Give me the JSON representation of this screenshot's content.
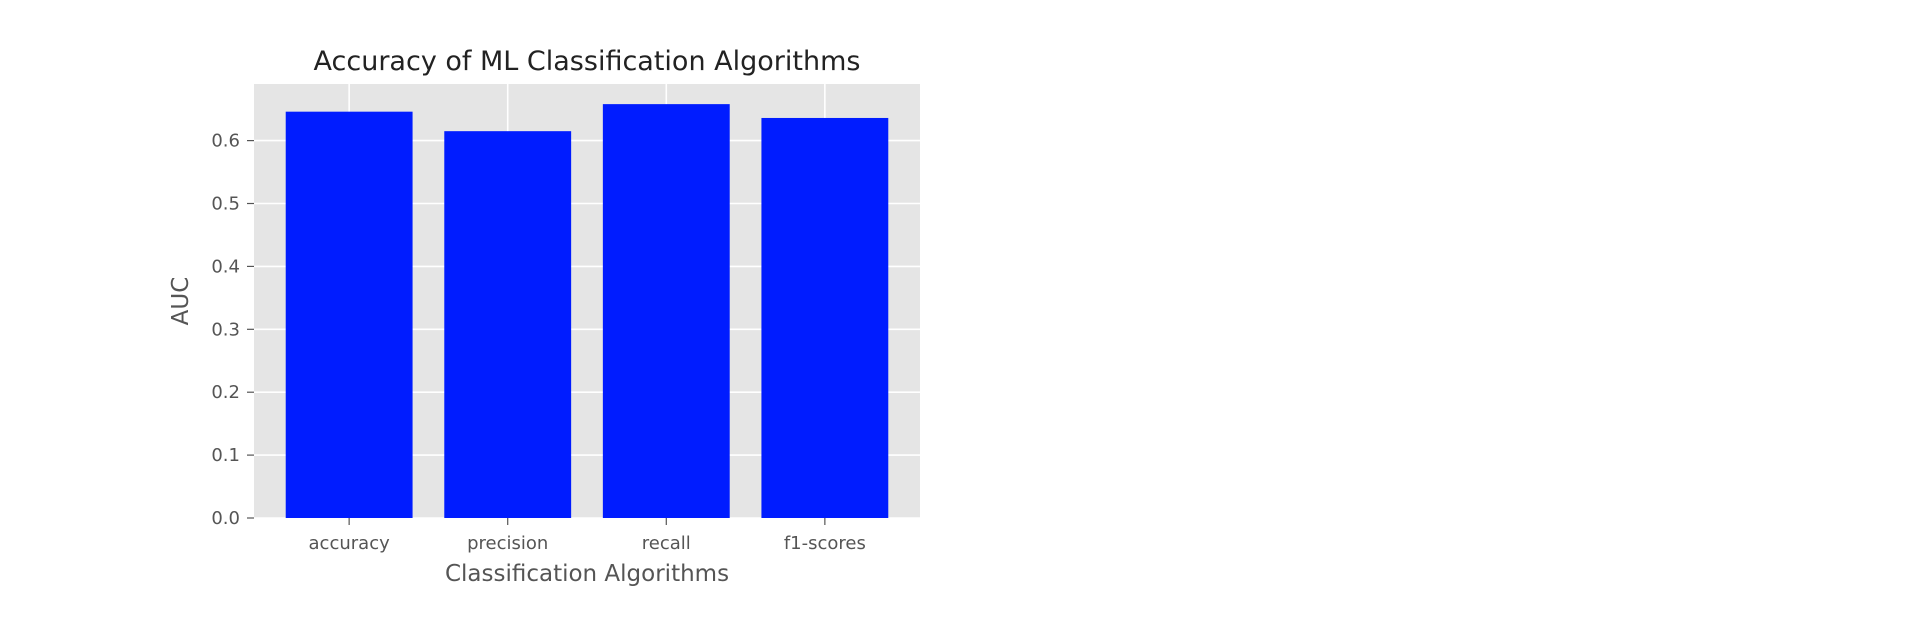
{
  "chart_data": {
    "type": "bar",
    "title": "Accuracy of ML Classification Algorithms",
    "xlabel": "Classification Algorithms",
    "ylabel": "AUC",
    "categories": [
      "accuracy",
      "precision",
      "recall",
      "f1-scores"
    ],
    "values": [
      0.646,
      0.615,
      0.658,
      0.636
    ],
    "ylim": [
      0,
      0.69
    ],
    "yticks": [
      "0.0",
      "0.1",
      "0.2",
      "0.3",
      "0.4",
      "0.5",
      "0.6"
    ],
    "grid": true,
    "bar_color": "#001cff",
    "plot_background": "#e5e5e5",
    "grid_color": "#ffffff"
  }
}
